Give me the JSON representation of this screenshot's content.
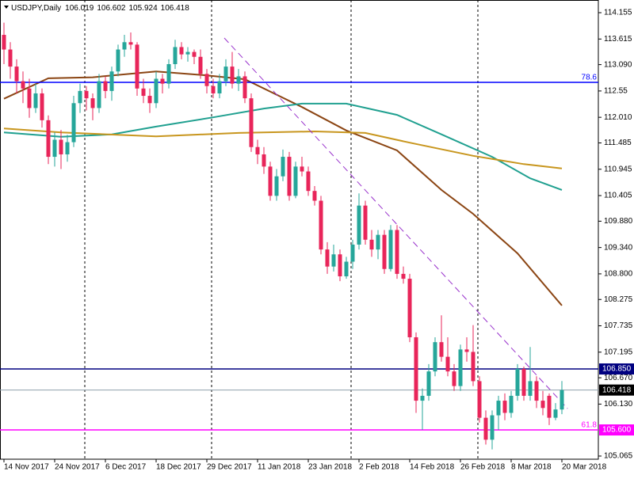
{
  "chart_data": {
    "type": "candlestick",
    "title": "USDJPY,Daily",
    "ohlc": [
      106.019,
      106.602,
      105.924,
      106.418
    ],
    "up_color": "#26a69a",
    "down_color": "#e8255a",
    "xlim": [
      -0.625,
      93.75
    ],
    "ylim": [
      105.0,
      114.415
    ],
    "yticks": [
      114.155,
      113.615,
      {
        "value": 113.09,
        "label": "113.090"
      },
      112.55,
      {
        "value": 112.01,
        "label": "112.010"
      },
      111.485,
      110.945,
      110.405,
      {
        "value": 109.88,
        "label": "109.880"
      },
      {
        "value": 109.34,
        "label": "109.340"
      },
      {
        "value": 108.8,
        "label": "108.800"
      },
      108.275,
      107.735,
      107.195,
      {
        "value": 106.67,
        "label": "106.670"
      },
      {
        "value": 106.13,
        "label": "106.130"
      },
      105.065
    ],
    "xticks": [
      {
        "value": 0,
        "label": "14 Nov 2017"
      },
      {
        "value": 8,
        "label": "24 Nov 2017"
      },
      {
        "value": 16,
        "label": "6 Dec 2017"
      },
      {
        "value": 24,
        "label": "18 Dec 2017"
      },
      {
        "value": 32,
        "label": "29 Dec 2017"
      },
      {
        "value": 40,
        "label": "11 Jan 2018"
      },
      {
        "value": 48,
        "label": "23 Jan 2018"
      },
      {
        "value": 56,
        "label": "2 Feb 2018"
      },
      {
        "value": 64,
        "label": "14 Feb 2018"
      },
      {
        "value": 72,
        "label": "26 Feb 2018"
      },
      {
        "value": 80,
        "label": "8 Mar 2018"
      },
      {
        "value": 88,
        "label": "20 Mar 2018"
      }
    ],
    "candles": [
      [
        113.7,
        113.95,
        113.1,
        113.4
      ],
      [
        113.4,
        113.55,
        112.8,
        113.05
      ],
      [
        113.05,
        113.2,
        112.5,
        112.75
      ],
      [
        112.75,
        112.95,
        112.3,
        112.6
      ],
      [
        112.6,
        112.8,
        112.0,
        112.2
      ],
      [
        112.2,
        112.7,
        112.1,
        112.5
      ],
      [
        112.5,
        112.6,
        111.8,
        111.95
      ],
      [
        111.95,
        112.05,
        111.05,
        111.2
      ],
      [
        111.2,
        111.7,
        111.0,
        111.55
      ],
      [
        111.55,
        111.75,
        110.95,
        111.25
      ],
      [
        111.25,
        111.65,
        111.1,
        111.5
      ],
      [
        111.5,
        112.45,
        111.4,
        112.3
      ],
      [
        112.3,
        112.7,
        112.1,
        112.55
      ],
      [
        112.55,
        112.65,
        112.15,
        112.4
      ],
      [
        112.4,
        112.5,
        111.95,
        112.2
      ],
      [
        112.2,
        112.9,
        112.1,
        112.75
      ],
      [
        112.75,
        112.85,
        112.4,
        112.55
      ],
      [
        112.55,
        113.05,
        112.35,
        112.95
      ],
      [
        112.95,
        113.5,
        112.85,
        113.4
      ],
      [
        113.4,
        113.7,
        113.25,
        113.55
      ],
      [
        113.55,
        113.75,
        113.4,
        113.5
      ],
      [
        113.5,
        113.55,
        112.45,
        112.6
      ],
      [
        112.6,
        112.8,
        112.3,
        112.45
      ],
      [
        112.45,
        112.6,
        112.1,
        112.3
      ],
      [
        112.3,
        112.95,
        112.2,
        112.8
      ],
      [
        112.8,
        112.9,
        112.5,
        112.7
      ],
      [
        112.7,
        113.2,
        112.6,
        113.1
      ],
      [
        113.1,
        113.6,
        113.0,
        113.45
      ],
      [
        113.45,
        113.55,
        113.2,
        113.3
      ],
      [
        113.3,
        113.45,
        113.15,
        113.35
      ],
      [
        113.35,
        113.4,
        113.1,
        113.25
      ],
      [
        113.25,
        113.4,
        112.8,
        112.9
      ],
      [
        112.9,
        113.0,
        112.5,
        112.65
      ],
      [
        112.65,
        112.8,
        112.4,
        112.5
      ],
      [
        112.5,
        112.9,
        112.4,
        112.75
      ],
      [
        112.75,
        113.2,
        112.65,
        113.05
      ],
      [
        113.05,
        113.35,
        112.6,
        112.7
      ],
      [
        112.7,
        113.0,
        112.55,
        112.85
      ],
      [
        112.85,
        112.95,
        112.3,
        112.4
      ],
      [
        112.4,
        112.5,
        111.3,
        111.4
      ],
      [
        111.4,
        111.55,
        111.05,
        111.25
      ],
      [
        111.25,
        111.4,
        110.85,
        111.0
      ],
      [
        111.0,
        111.1,
        110.3,
        110.4
      ],
      [
        110.4,
        110.95,
        110.3,
        110.8
      ],
      [
        110.8,
        111.35,
        110.7,
        111.2
      ],
      [
        111.2,
        111.3,
        110.3,
        110.4
      ],
      [
        110.4,
        111.1,
        110.35,
        111.0
      ],
      [
        111.0,
        111.2,
        110.8,
        110.9
      ],
      [
        110.9,
        111.0,
        110.4,
        110.5
      ],
      [
        110.5,
        110.6,
        110.2,
        110.3
      ],
      [
        110.3,
        110.4,
        109.2,
        109.3
      ],
      [
        109.3,
        109.45,
        108.8,
        108.95
      ],
      [
        108.95,
        109.4,
        108.85,
        109.2
      ],
      [
        109.2,
        109.3,
        108.65,
        108.75
      ],
      [
        108.75,
        109.15,
        108.7,
        109.05
      ],
      [
        109.05,
        109.5,
        108.9,
        109.4
      ],
      [
        109.4,
        110.45,
        109.3,
        110.2
      ],
      [
        110.2,
        110.3,
        109.4,
        109.5
      ],
      [
        109.5,
        109.7,
        109.15,
        109.3
      ],
      [
        109.3,
        109.7,
        109.1,
        109.6
      ],
      [
        109.6,
        109.7,
        108.8,
        108.9
      ],
      [
        108.9,
        109.8,
        108.85,
        109.7
      ],
      [
        109.7,
        109.8,
        108.7,
        108.8
      ],
      [
        108.8,
        108.95,
        108.6,
        108.7
      ],
      [
        108.7,
        108.8,
        107.4,
        107.5
      ],
      [
        107.5,
        107.6,
        105.95,
        106.2
      ],
      [
        106.2,
        106.45,
        105.6,
        106.3
      ],
      [
        106.3,
        106.95,
        106.2,
        106.8
      ],
      [
        106.8,
        107.5,
        106.7,
        107.4
      ],
      [
        107.4,
        107.95,
        107.0,
        107.1
      ],
      [
        107.1,
        107.5,
        106.7,
        106.8
      ],
      [
        106.8,
        106.95,
        106.4,
        106.5
      ],
      [
        106.5,
        107.35,
        106.4,
        107.25
      ],
      [
        107.25,
        107.5,
        107.0,
        107.2
      ],
      [
        107.2,
        107.75,
        106.5,
        106.6
      ],
      [
        106.6,
        106.7,
        105.75,
        105.85
      ],
      [
        105.85,
        106.0,
        105.3,
        105.4
      ],
      [
        105.4,
        106.0,
        105.2,
        105.9
      ],
      [
        105.9,
        106.3,
        105.6,
        106.2
      ],
      [
        106.2,
        106.35,
        105.8,
        105.95
      ],
      [
        105.95,
        106.4,
        105.85,
        106.3
      ],
      [
        106.3,
        106.95,
        106.2,
        106.85
      ],
      [
        106.85,
        106.9,
        106.2,
        106.3
      ],
      [
        106.3,
        107.3,
        106.2,
        106.6
      ],
      [
        106.6,
        106.7,
        106.05,
        106.2
      ],
      [
        106.2,
        106.4,
        105.9,
        106.05
      ],
      [
        106.3,
        106.35,
        105.7,
        105.85
      ],
      [
        105.85,
        106.15,
        105.8,
        106.02
      ],
      [
        106.019,
        106.602,
        105.924,
        106.418
      ]
    ],
    "ma": [
      {
        "color": "#8b4513",
        "x": [
          0,
          7,
          14,
          24,
          32,
          38,
          47,
          54,
          62,
          69,
          74,
          81,
          88
        ],
        "values": [
          112.39,
          112.81,
          112.83,
          112.95,
          112.87,
          112.79,
          112.22,
          111.74,
          111.33,
          110.52,
          110.03,
          109.22,
          108.15
        ]
      },
      {
        "color": "#20a090",
        "x": [
          0,
          9,
          17,
          24,
          33,
          41,
          47,
          54,
          62,
          69,
          77,
          83,
          88
        ],
        "values": [
          111.7,
          111.61,
          111.66,
          111.82,
          112.01,
          112.19,
          112.29,
          112.29,
          112.06,
          111.66,
          111.2,
          110.76,
          110.52
        ]
      },
      {
        "color": "#c8961e",
        "x": [
          0,
          9,
          24,
          37,
          49,
          57,
          64,
          74,
          82,
          88
        ],
        "values": [
          111.78,
          111.7,
          111.62,
          111.69,
          111.72,
          111.69,
          111.49,
          111.22,
          111.05,
          110.96
        ]
      }
    ],
    "trendline": {
      "color": "#9932cc",
      "x": [
        34.75,
        88.9
      ],
      "values": [
        113.636,
        106.038
      ]
    },
    "levels": [
      {
        "value": 112.726,
        "fib": 78.6,
        "color": "#0000ff"
      },
      {
        "value": 106.85,
        "label": "106.850",
        "color": "#000080",
        "box_color": "#000080"
      },
      {
        "value": 106.418,
        "color": "#8fa0ad",
        "box_color": "#000000"
      },
      {
        "value": 105.6,
        "label": "105.600",
        "fib": 61.8,
        "color": "#ff00ff",
        "box_color": "#ff00ff"
      }
    ]
  }
}
